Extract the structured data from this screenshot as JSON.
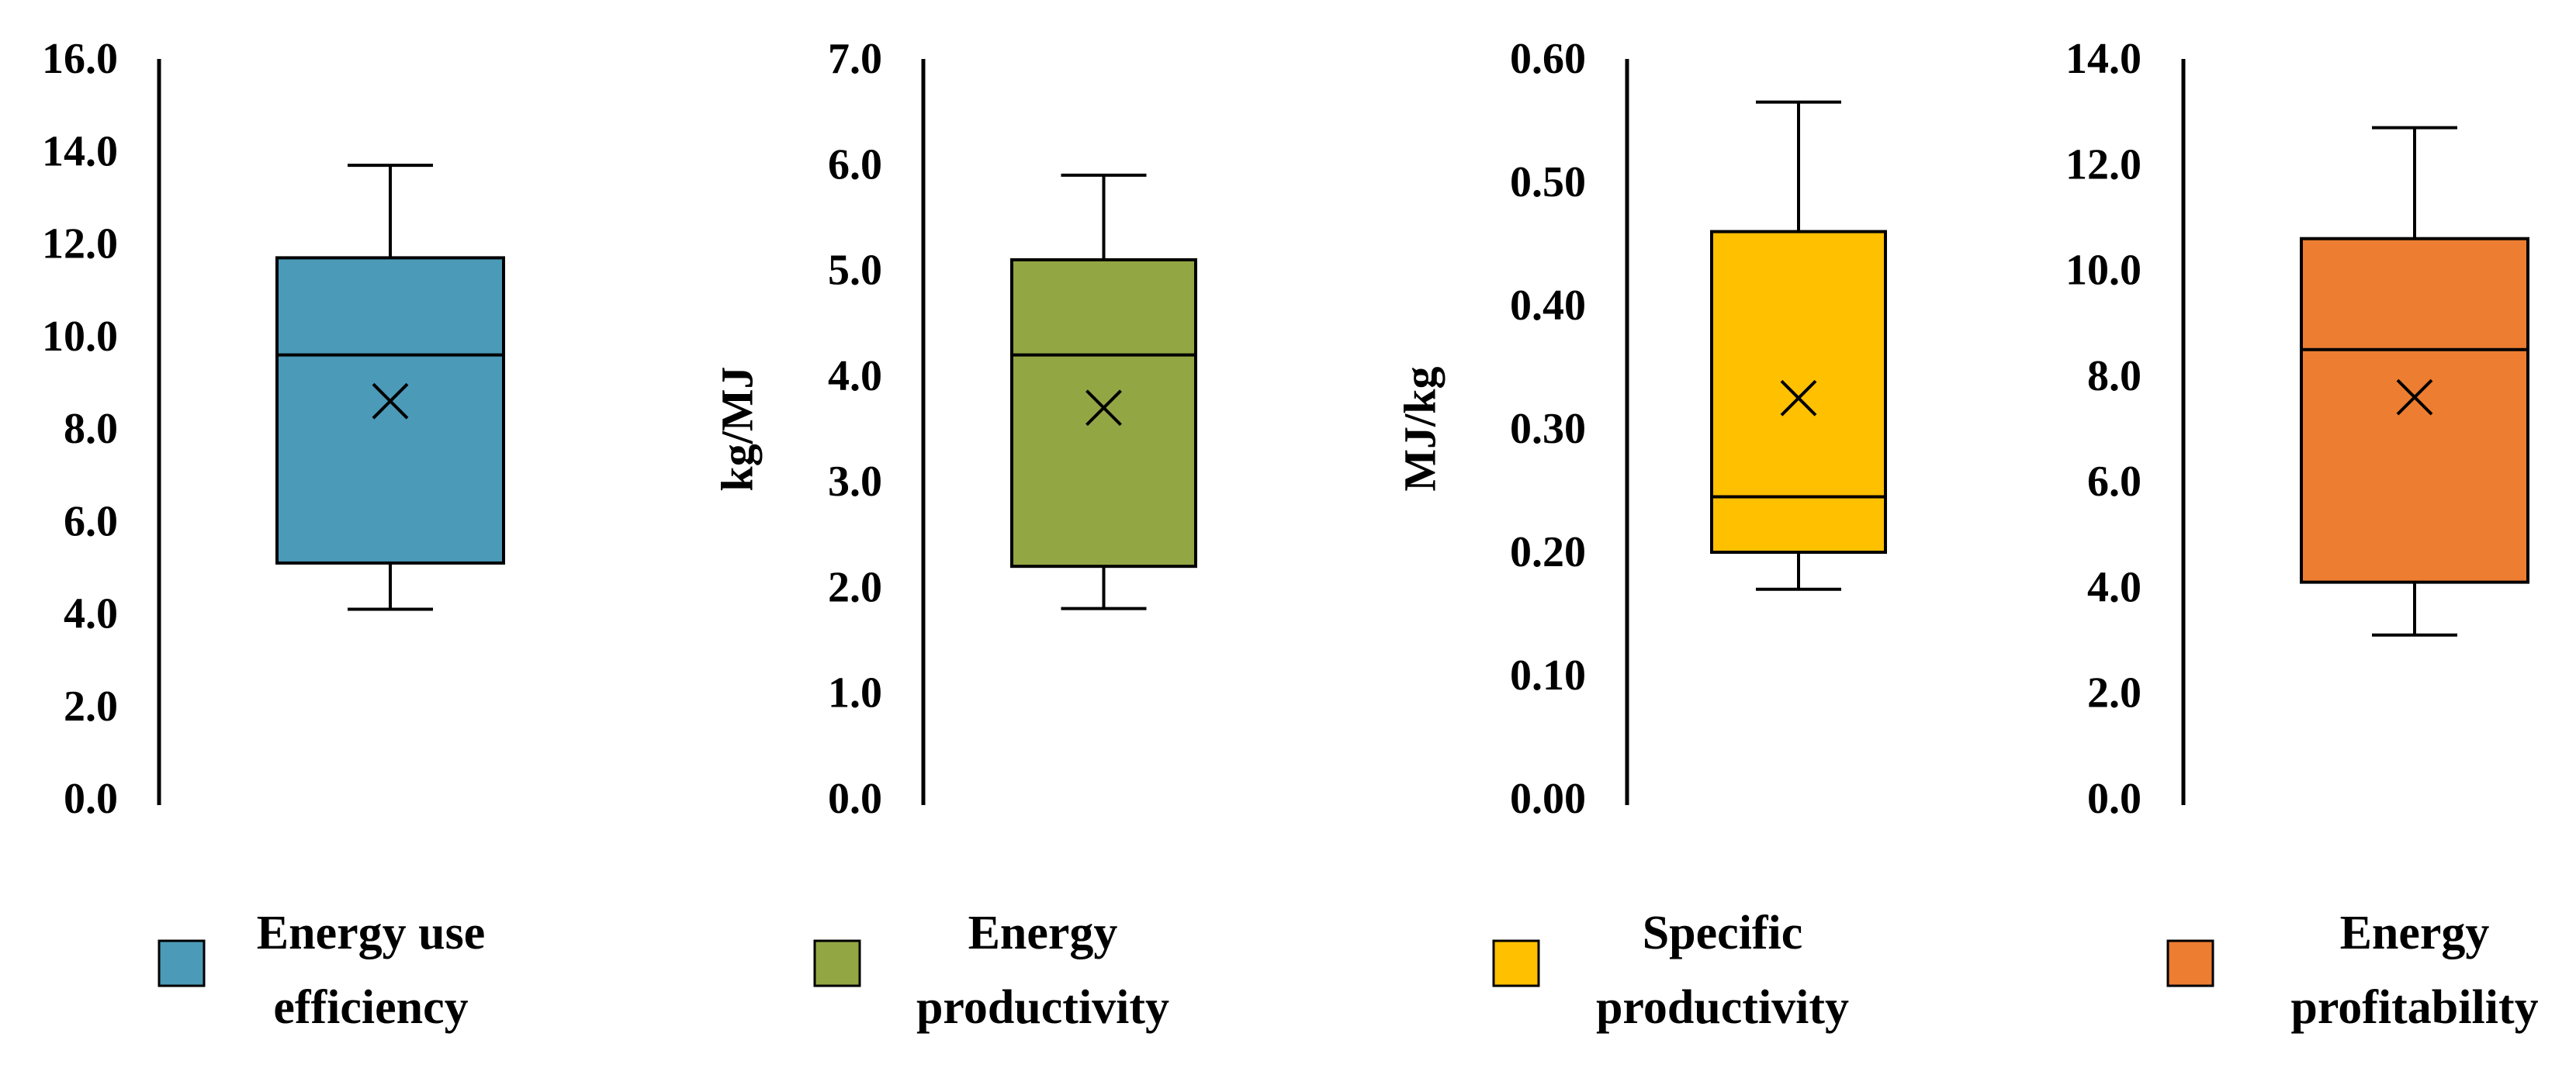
{
  "chart_data": [
    {
      "type": "box",
      "title": "",
      "xlabel": "",
      "ylabel": "",
      "ylim": [
        0,
        16
      ],
      "tick_labels": [
        "0.0",
        "2.0",
        "4.0",
        "6.0",
        "8.0",
        "10.0",
        "12.0",
        "14.0",
        "16.0"
      ],
      "series": [
        {
          "name": "Energy use efficiency",
          "min": 4.1,
          "q1": 5.1,
          "median": 9.6,
          "q3": 11.7,
          "max": 13.7,
          "mean": 8.6
        }
      ],
      "legend": {
        "lines": [
          "Energy use",
          "efficiency"
        ],
        "color": "#4a9ab8",
        "placement": "bottom"
      }
    },
    {
      "type": "box",
      "title": "",
      "xlabel": "",
      "ylabel": "kg/MJ",
      "ylim": [
        0,
        7
      ],
      "tick_labels": [
        "0.0",
        "1.0",
        "2.0",
        "3.0",
        "4.0",
        "5.0",
        "6.0",
        "7.0"
      ],
      "series": [
        {
          "name": "Energy productivity",
          "min": 1.8,
          "q1": 2.2,
          "median": 4.2,
          "q3": 5.1,
          "max": 5.9,
          "mean": 3.7
        }
      ],
      "legend": {
        "lines": [
          "Energy",
          "productivity"
        ],
        "color": "#93a644",
        "placement": "bottom"
      }
    },
    {
      "type": "box",
      "title": "",
      "xlabel": "",
      "ylabel": "MJ/kg",
      "ylim": [
        0,
        0.6
      ],
      "tick_labels": [
        "0.00",
        "0.10",
        "0.20",
        "0.30",
        "0.40",
        "0.50",
        "0.60"
      ],
      "series": [
        {
          "name": "Specific productivity",
          "min": 0.17,
          "q1": 0.2,
          "median": 0.245,
          "q3": 0.46,
          "max": 0.565,
          "mean": 0.325
        }
      ],
      "legend": {
        "lines": [
          "Specific",
          "productivity"
        ],
        "color": "#ffc000",
        "placement": "bottom"
      }
    },
    {
      "type": "box",
      "title": "",
      "xlabel": "",
      "ylabel": "",
      "ylim": [
        0,
        14
      ],
      "tick_labels": [
        "0.0",
        "2.0",
        "4.0",
        "6.0",
        "8.0",
        "10.0",
        "12.0",
        "14.0"
      ],
      "series": [
        {
          "name": "Energy profitability",
          "min": 3.1,
          "q1": 4.1,
          "median": 8.5,
          "q3": 10.6,
          "max": 12.7,
          "mean": 7.6
        }
      ],
      "legend": {
        "lines": [
          "Energy",
          "profitability"
        ],
        "color": "#ed7d31",
        "placement": "bottom"
      }
    }
  ]
}
